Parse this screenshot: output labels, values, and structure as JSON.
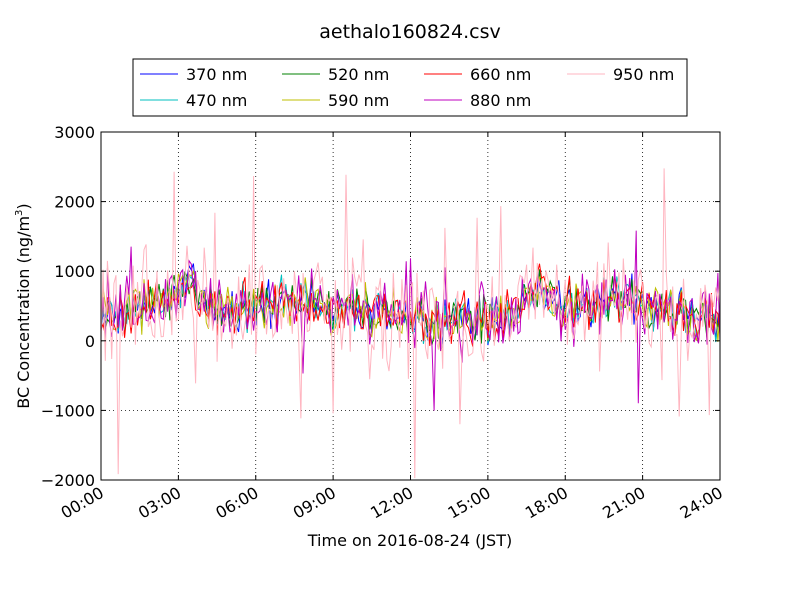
{
  "chart_data": {
    "type": "line",
    "title": "aethalo160824.csv",
    "xlabel": "Time on 2016-08-24 (JST)",
    "ylabel_prefix": "BC Concentration (ng/m",
    "ylabel_sup": "3",
    "ylabel_suffix": ")",
    "xlim": [
      0,
      24
    ],
    "ylim": [
      -2000,
      3000
    ],
    "x_ticks": [
      0,
      3,
      6,
      9,
      12,
      15,
      18,
      21,
      24
    ],
    "x_tick_labels": [
      "00:00",
      "03:00",
      "06:00",
      "09:00",
      "12:00",
      "15:00",
      "18:00",
      "21:00",
      "24:00"
    ],
    "y_ticks": [
      -2000,
      -1000,
      0,
      1000,
      2000,
      3000
    ],
    "y_tick_labels": [
      "−2000",
      "−1000",
      "0",
      "1000",
      "2000",
      "3000"
    ],
    "grid": true,
    "legend_placement": "top-center",
    "series": [
      {
        "name": "370 nm",
        "color": "#0000ff",
        "seed": 11,
        "noise": 210
      },
      {
        "name": "470 nm",
        "color": "#00bfbf",
        "seed": 23,
        "noise": 230
      },
      {
        "name": "520 nm",
        "color": "#008000",
        "seed": 37,
        "noise": 250
      },
      {
        "name": "590 nm",
        "color": "#bfbf00",
        "seed": 41,
        "noise": 270
      },
      {
        "name": "660 nm",
        "color": "#ff0000",
        "seed": 53,
        "noise": 300
      },
      {
        "name": "880 nm",
        "color": "#bf00bf",
        "seed": 67,
        "noise": 360
      },
      {
        "name": "950 nm",
        "color": "#ffb6c1",
        "seed": 79,
        "noise": 650
      }
    ],
    "base_curve": [
      [
        0,
        400
      ],
      [
        1,
        450
      ],
      [
        2,
        550
      ],
      [
        3,
        700
      ],
      [
        3.5,
        950
      ],
      [
        4,
        600
      ],
      [
        5,
        450
      ],
      [
        6,
        500
      ],
      [
        7,
        550
      ],
      [
        8,
        600
      ],
      [
        9,
        450
      ],
      [
        10,
        500
      ],
      [
        11,
        400
      ],
      [
        12,
        350
      ],
      [
        13,
        250
      ],
      [
        14,
        350
      ],
      [
        15,
        300
      ],
      [
        16,
        400
      ],
      [
        17,
        800
      ],
      [
        18,
        500
      ],
      [
        19,
        450
      ],
      [
        20,
        650
      ],
      [
        21,
        550
      ],
      [
        22,
        450
      ],
      [
        23,
        350
      ],
      [
        24,
        300
      ]
    ],
    "sample_step_minutes": 5
  }
}
